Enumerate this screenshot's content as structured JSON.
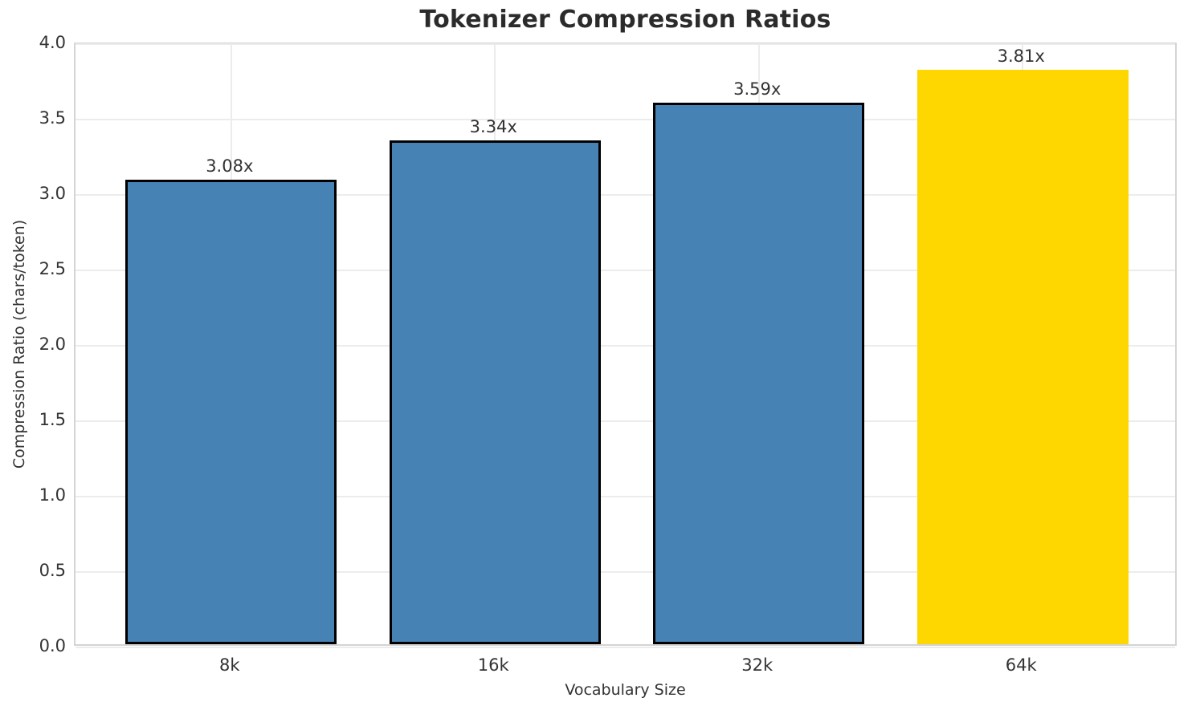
{
  "chart_data": {
    "type": "bar",
    "title": "Tokenizer Compression Ratios",
    "xlabel": "Vocabulary Size",
    "ylabel": "Compression Ratio (chars/token)",
    "categories": [
      "8k",
      "16k",
      "32k",
      "64k"
    ],
    "values": [
      3.08,
      3.34,
      3.59,
      3.81
    ],
    "bar_labels": [
      "3.08x",
      "3.34x",
      "3.59x",
      "3.81x"
    ],
    "bar_colors": [
      "#4682b4",
      "#4682b4",
      "#4682b4",
      "#ffd700"
    ],
    "bar_edge_colors": [
      "#000000",
      "#000000",
      "#000000",
      "none"
    ],
    "ylim": [
      0,
      4.0
    ],
    "ytick_labels": [
      "0.0",
      "0.5",
      "1.0",
      "1.5",
      "2.0",
      "2.5",
      "3.0",
      "3.5",
      "4.0"
    ],
    "grid": "both",
    "legend": "none",
    "colors": {
      "grid": "#ececec",
      "spine": "#d4d4d4",
      "text": "#333333",
      "title": "#2b2b2b",
      "background": "#ffffff"
    }
  }
}
